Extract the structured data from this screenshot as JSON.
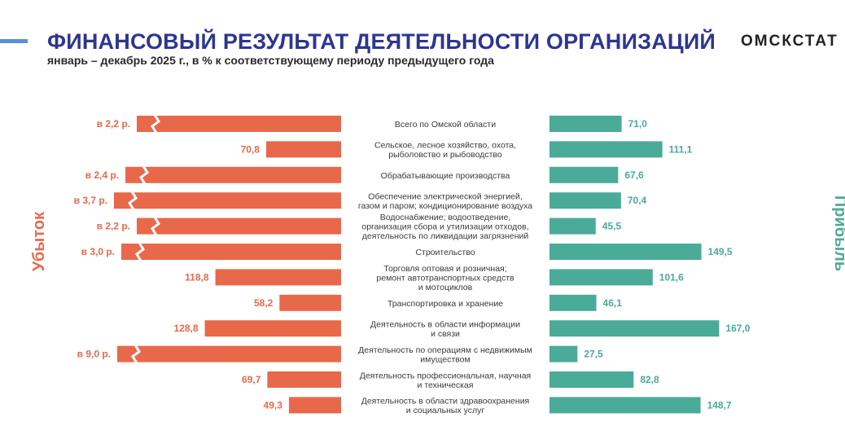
{
  "header": {
    "title": "ФИНАНСОВЫЙ РЕЗУЛЬТАТ ДЕЯТЕЛЬНОСТИ ОРГАНИЗАЦИЙ",
    "subtitle": "январь – декабрь 2025 г., в % к соответствующему периоду предыдущего года",
    "brand": "ОМСКСТАТ"
  },
  "colors": {
    "loss": "#e8694a",
    "profit": "#4aab98",
    "title": "#2e3591"
  },
  "chart_data": {
    "type": "bar",
    "side_labels": {
      "left": "Убыток",
      "right": "Прибыль"
    },
    "categories": [
      "Всего по Омской области",
      "Сельское, лесное хозяйство, охота, рыболовство и рыбоводство",
      "Обрабатывающие производства",
      "Обеспечение электрической энергией, газом и паром; кондиционирование воздуха",
      "Водоснабжение; водоотведение, организация сбора и утилизации отходов, деятельность по ликвидации загрязнений",
      "Строительство",
      "Торговля оптовая и розничная; ремонт автотранспортных средств и мотоциклов",
      "Транспортировка и хранение",
      "Деятельность в области информации и связи",
      "Деятельность по операциям с недвижимым имуществом",
      "Деятельность профессиональная, научная и техническая",
      "Деятельность в области здравоохранения и социальных услуг"
    ],
    "category_lines": [
      [
        "Всего по Омской области"
      ],
      [
        "Сельское, лесное хозяйство, охота,",
        "рыболовство и  рыбоводство"
      ],
      [
        "Обрабатывающие производства"
      ],
      [
        "Обеспечение электрической энергией,",
        "газом и паром; кондиционирование воздуха"
      ],
      [
        "Водоснабжение; водоотведение,",
        "организация сбора и утилизации отходов,",
        "деятельность по ликвидации загрязнений"
      ],
      [
        "Строительство"
      ],
      [
        "Торговля оптовая и розничная;",
        "ремонт автотранспортных средств",
        "и мотоциклов"
      ],
      [
        "Транспортировка и хранение"
      ],
      [
        "Деятельность в области информации",
        "и связи"
      ],
      [
        "Деятельность по операциям с недвижимым",
        "имуществом"
      ],
      [
        "Деятельность профессиональная, научная",
        "и техническая"
      ],
      [
        "Деятельность в области здравоохранения",
        "и социальных услуг"
      ]
    ],
    "series": [
      {
        "name": "Убыток",
        "values": [
          220,
          70.8,
          240,
          370,
          220,
          300,
          118.8,
          58.2,
          128.8,
          900,
          69.7,
          49.3
        ],
        "labels": [
          "в 2,2 р.",
          "70,8",
          "в 2,4 р.",
          "в 3,7 р.",
          "в 2,2 р.",
          "в 3,0 р.",
          "118,8",
          "58,2",
          "128,8",
          "в 9,0 р.",
          "69,7",
          "49,3"
        ],
        "broken": [
          true,
          false,
          true,
          true,
          true,
          true,
          false,
          false,
          false,
          true,
          false,
          false
        ]
      },
      {
        "name": "Прибыль",
        "values": [
          71.0,
          111.1,
          67.6,
          70.4,
          45.5,
          149.5,
          101.6,
          46.1,
          167.0,
          27.5,
          82.8,
          148.7
        ],
        "labels": [
          "71,0",
          "111,1",
          "67,6",
          "70,4",
          "45,5",
          "149,5",
          "101,6",
          "46,1",
          "167,0",
          "27,5",
          "82,8",
          "148,7"
        ]
      }
    ]
  }
}
